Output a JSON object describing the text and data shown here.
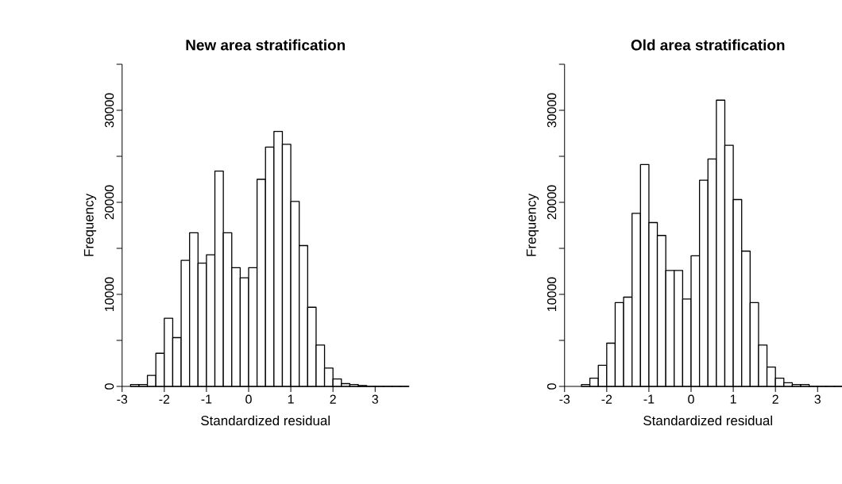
{
  "chart_data": [
    {
      "type": "histogram",
      "title": "New area stratification",
      "xlabel": "Standardized residual",
      "ylabel": "Frequency",
      "color": "#ffffff",
      "bins": [
        -2.8,
        -2.6,
        -2.4,
        -2.2,
        -2.0,
        -1.8,
        -1.6,
        -1.4,
        -1.2,
        -1.0,
        -0.8,
        -0.6,
        -0.4,
        -0.2,
        0.0,
        0.2,
        0.4,
        0.6,
        0.8,
        1.0,
        1.2,
        1.4,
        1.6,
        1.8,
        2.0,
        2.2,
        2.4,
        2.6,
        2.8,
        3.0,
        3.2,
        3.4,
        3.6,
        3.8
      ],
      "values": [
        200,
        200,
        1200,
        3600,
        7400,
        5300,
        13700,
        16700,
        13400,
        14300,
        23400,
        16700,
        12900,
        11800,
        12900,
        22500,
        26000,
        27700,
        26300,
        20100,
        15300,
        8600,
        4500,
        2000,
        800,
        300,
        200,
        100,
        0,
        0,
        0,
        0,
        0
      ],
      "xlim": [
        -3,
        3.8
      ],
      "ylim": [
        0,
        35000
      ],
      "xticks": [
        -3,
        -2,
        -1,
        0,
        1,
        2,
        3
      ],
      "yticks": [
        0,
        {
          "value": 5000,
          "label": null
        },
        10000,
        {
          "value": 15000,
          "label": null
        },
        20000,
        {
          "value": 25000,
          "label": null
        },
        30000,
        {
          "value": 35000,
          "label": null
        }
      ]
    },
    {
      "type": "histogram",
      "title": "Old area stratification",
      "xlabel": "Standardized residual",
      "ylabel": "Frequency",
      "color": "#ffffff",
      "bins": [
        -2.6,
        -2.4,
        -2.2,
        -2.0,
        -1.8,
        -1.6,
        -1.4,
        -1.2,
        -1.0,
        -0.8,
        -0.6,
        -0.4,
        -0.2,
        0.0,
        0.2,
        0.4,
        0.6,
        0.8,
        1.0,
        1.2,
        1.4,
        1.6,
        1.8,
        2.0,
        2.2,
        2.4,
        2.6,
        2.8,
        3.0,
        3.2,
        3.4,
        3.6
      ],
      "values": [
        200,
        900,
        2300,
        4700,
        9100,
        9700,
        18800,
        24100,
        17800,
        16400,
        12600,
        12600,
        9500,
        14200,
        22400,
        24700,
        31100,
        26200,
        20300,
        14700,
        9100,
        4500,
        2100,
        900,
        400,
        200,
        200,
        0,
        0,
        0,
        0
      ],
      "xlim": [
        -3,
        3.8
      ],
      "ylim": [
        0,
        35000
      ],
      "xticks": [
        -3,
        -2,
        -1,
        0,
        1,
        2,
        3
      ],
      "yticks": [
        0,
        {
          "value": 5000,
          "label": null
        },
        10000,
        {
          "value": 15000,
          "label": null
        },
        20000,
        {
          "value": 25000,
          "label": null
        },
        30000,
        {
          "value": 35000,
          "label": null
        }
      ]
    }
  ]
}
